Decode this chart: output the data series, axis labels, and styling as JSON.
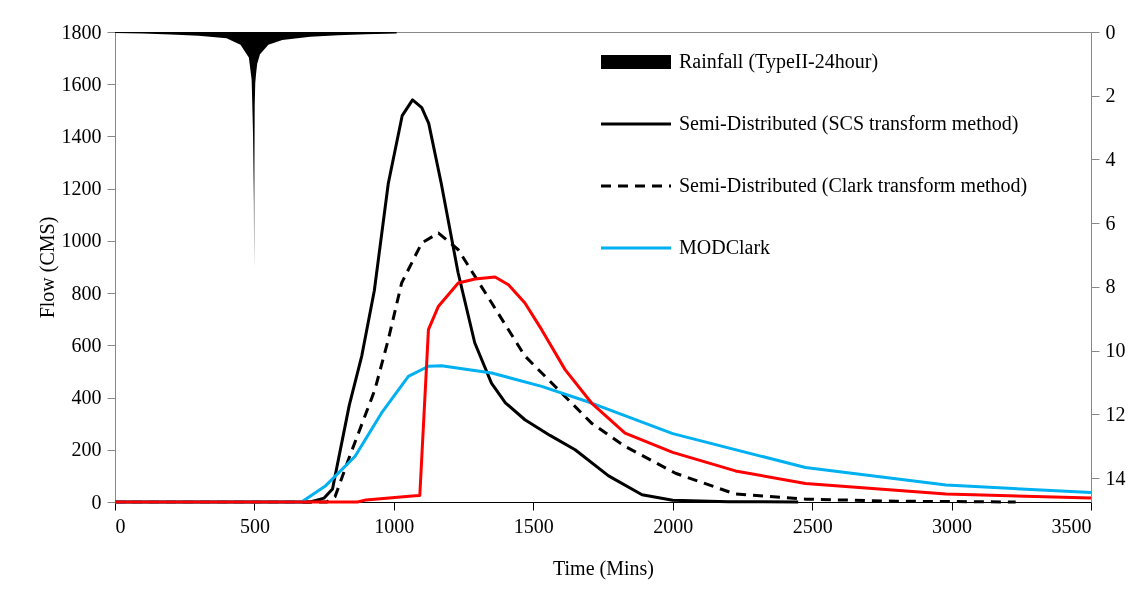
{
  "chart_data": {
    "type": "line",
    "xlabel": "Time (Mins)",
    "ylabel": "Flow (CMS)",
    "xlim": [
      0,
      3500
    ],
    "xticks": [
      0,
      500,
      1000,
      1500,
      2000,
      2500,
      3000,
      3500
    ],
    "ylim": [
      0,
      1800
    ],
    "yticks": [
      0,
      200,
      400,
      600,
      800,
      1000,
      1200,
      1400,
      1600,
      1800
    ],
    "y2lim": [
      14.75,
      0
    ],
    "y2ticks": [
      0,
      2,
      4,
      6,
      8,
      10,
      12,
      14
    ],
    "grid": false,
    "legend": "top right",
    "marker": "none",
    "series": [
      {
        "name": "Rainfall (TypeII-24hour)",
        "type": "area",
        "axis": "y2",
        "color": "#000000",
        "x": [
          0,
          100,
          200,
          300,
          400,
          450,
          480,
          490,
          495,
          498,
          499,
          500,
          501,
          503,
          506,
          510,
          520,
          550,
          600,
          700,
          800,
          900,
          1010
        ],
        "values": [
          0.03,
          0.05,
          0.08,
          0.12,
          0.2,
          0.4,
          0.8,
          1.5,
          3.2,
          5.3,
          7.4,
          4.2,
          2.3,
          1.6,
          1.3,
          1.0,
          0.7,
          0.4,
          0.25,
          0.15,
          0.1,
          0.07,
          0.05
        ]
      },
      {
        "name": "Semi-Distributed (SCS transform method)",
        "line_style": "solid",
        "color": "#000000",
        "x": [
          0,
          700,
          750,
          780,
          840,
          885,
          930,
          980,
          1030,
          1067,
          1100,
          1125,
          1170,
          1230,
          1290,
          1350,
          1400,
          1470,
          1560,
          1650,
          1770,
          1890,
          2000,
          2200,
          2450
        ],
        "values": [
          0,
          0,
          15,
          50,
          370,
          560,
          810,
          1220,
          1480,
          1540,
          1510,
          1450,
          1220,
          880,
          610,
          455,
          380,
          315,
          255,
          200,
          100,
          28,
          7,
          1,
          0
        ]
      },
      {
        "name": "Semi-Distributed (Clark transform method)",
        "line_style": "dashed",
        "color": "#000000",
        "x": [
          0,
          760,
          789,
          837,
          932,
          980,
          1028,
          1100,
          1160,
          1231,
          1351,
          1470,
          1590,
          1709,
          1829,
          2010,
          2223,
          2476,
          2800,
          3230
        ],
        "values": [
          0,
          0,
          20,
          162,
          430,
          622,
          839,
          992,
          1030,
          966,
          762,
          559,
          430,
          302,
          213,
          110,
          31,
          11,
          3,
          0
        ]
      },
      {
        "name": "MODClark",
        "line_style": "solid",
        "color": "#00b0f0",
        "x": [
          0,
          669,
          753,
          861,
          956,
          1052,
          1124,
          1171,
          1351,
          1530,
          1709,
          2000,
          2476,
          2980,
          3500
        ],
        "values": [
          0,
          0,
          60,
          175,
          341,
          481,
          520,
          522,
          494,
          443,
          379,
          262,
          132,
          65,
          36
        ]
      },
      {
        "line_style": "solid",
        "color": "#ff0000",
        "x": [
          0,
          870,
          900,
          1076,
          1093,
          1124,
          1160,
          1231,
          1291,
          1363,
          1411,
          1470,
          1530,
          1614,
          1709,
          1829,
          2000,
          2225,
          2476,
          2980,
          3500
        ],
        "values": [
          0,
          0,
          8,
          24,
          25,
          660,
          750,
          839,
          854,
          862,
          832,
          762,
          660,
          507,
          379,
          264,
          190,
          119,
          71,
          31,
          15
        ]
      }
    ]
  }
}
